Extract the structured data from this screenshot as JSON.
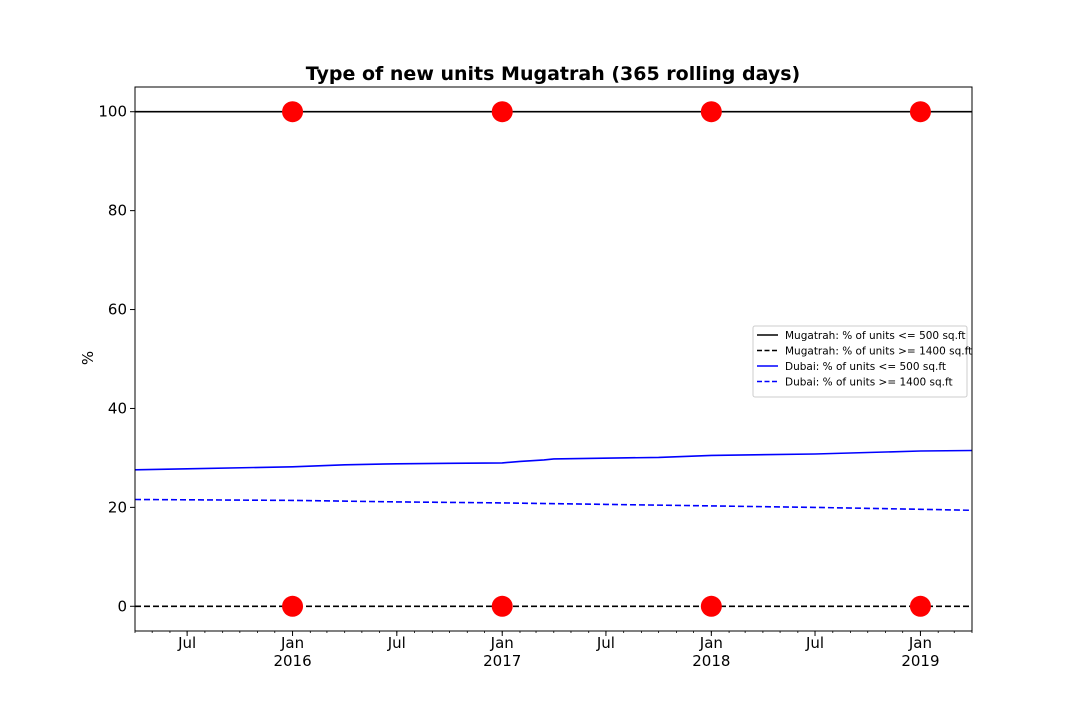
{
  "chart_data": {
    "type": "line",
    "title": "Type of new units Mugatrah (365 rolling days)",
    "xlabel": "",
    "ylabel": "%",
    "xlim": [
      "2015-04-01",
      "2019-04-01"
    ],
    "ylim": [
      -5,
      105
    ],
    "grid": false,
    "legend_position": "center-right",
    "y_ticks": [
      0,
      20,
      40,
      60,
      80,
      100
    ],
    "x_ticks": [
      {
        "date": "2015-07-01",
        "label": "Jul",
        "year": ""
      },
      {
        "date": "2016-01-01",
        "label": "Jan",
        "year": "2016"
      },
      {
        "date": "2016-07-01",
        "label": "Jul",
        "year": ""
      },
      {
        "date": "2017-01-01",
        "label": "Jan",
        "year": "2017"
      },
      {
        "date": "2017-07-01",
        "label": "Jul",
        "year": ""
      },
      {
        "date": "2018-01-01",
        "label": "Jan",
        "year": "2018"
      },
      {
        "date": "2018-07-01",
        "label": "Jul",
        "year": ""
      },
      {
        "date": "2019-01-01",
        "label": "Jan",
        "year": "2019"
      }
    ],
    "series": [
      {
        "name": "Mugatrah: % of units <= 500 sq.ft",
        "color": "#000000",
        "style": "solid",
        "x": [
          "2015-04-01",
          "2019-04-01"
        ],
        "y": [
          100,
          100
        ]
      },
      {
        "name": "Mugatrah: % of units >= 1400 sq.ft",
        "color": "#000000",
        "style": "dashed",
        "x": [
          "2015-04-01",
          "2019-04-01"
        ],
        "y": [
          0,
          0
        ]
      },
      {
        "name": "Dubai: % of units <= 500 sq.ft",
        "color": "#0000ff",
        "style": "solid",
        "x": [
          "2015-04-01",
          "2015-07-01",
          "2016-01-01",
          "2016-04-01",
          "2016-07-01",
          "2016-10-01",
          "2017-01-01",
          "2017-02-01",
          "2017-03-15",
          "2017-04-01",
          "2017-10-01",
          "2018-01-01",
          "2018-07-01",
          "2018-10-01",
          "2019-01-01",
          "2019-04-01"
        ],
        "y": [
          27.6,
          27.8,
          28.2,
          28.6,
          28.8,
          28.9,
          29.0,
          29.3,
          29.6,
          29.8,
          30.1,
          30.5,
          30.8,
          31.1,
          31.4,
          31.5
        ]
      },
      {
        "name": "Dubai: % of units >= 1400 sq.ft",
        "color": "#0000ff",
        "style": "dashed",
        "x": [
          "2015-04-01",
          "2016-01-01",
          "2016-07-01",
          "2017-01-01",
          "2017-07-01",
          "2018-01-01",
          "2018-07-01",
          "2019-01-01",
          "2019-04-01"
        ],
        "y": [
          21.6,
          21.4,
          21.1,
          20.9,
          20.6,
          20.3,
          20.0,
          19.6,
          19.4
        ]
      },
      {
        "name": "",
        "type": "scatter",
        "color": "#ff0000",
        "x": [
          "2016-01-01",
          "2017-01-01",
          "2018-01-01",
          "2019-01-01",
          "2016-01-01",
          "2017-01-01",
          "2018-01-01",
          "2019-01-01"
        ],
        "y": [
          100,
          100,
          100,
          100,
          0,
          0,
          0,
          0
        ]
      }
    ]
  }
}
